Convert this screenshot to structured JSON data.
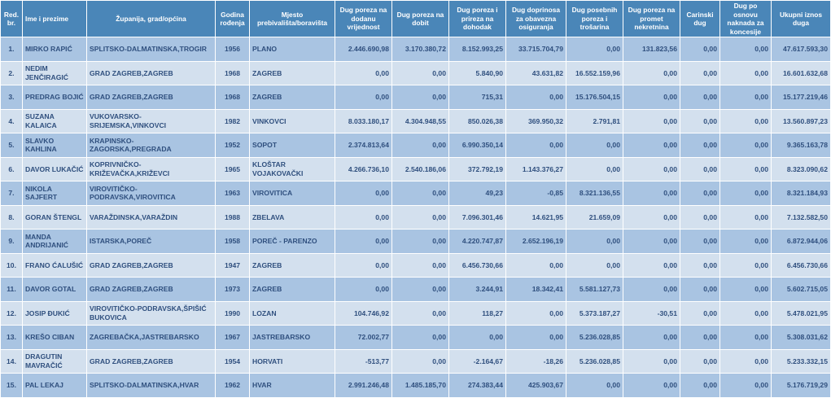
{
  "headers": {
    "rbr": "Red. br.",
    "name": "Ime i prezime",
    "zupanija": "Županija, grad/općina",
    "godina": "Godina rođenja",
    "mjesto": "Mjesto prebivališta/boravišta",
    "pdv": "Dug poreza na dodanu vrijednost",
    "dobit": "Dug poreza na dobit",
    "dohodak": "Dug poreza i prireza na dohodak",
    "doprinosi": "Dug doprinosa za obavezna osiguranja",
    "posebni": "Dug posebnih poreza i trošarina",
    "nekretnine": "Dug poreza na promet nekretnina",
    "carinski": "Carinski dug",
    "koncesije": "Dug po osnovu naknada za koncesije",
    "ukupno": "Ukupni iznos duga"
  },
  "rows": [
    {
      "rbr": "1.",
      "name": "MIRKO RAPIĆ",
      "zupanija": "SPLITSKO-DALMATINSKA,TROGIR",
      "godina": "1956",
      "mjesto": "PLANO",
      "pdv": "2.446.690,98",
      "dobit": "3.170.380,72",
      "dohodak": "8.152.993,25",
      "doprinosi": "33.715.704,79",
      "posebni": "0,00",
      "nekretnine": "131.823,56",
      "carinski": "0,00",
      "koncesije": "0,00",
      "ukupno": "47.617.593,30"
    },
    {
      "rbr": "2.",
      "name": "NEDIM JENČIRAGIĆ",
      "zupanija": "GRAD ZAGREB,ZAGREB",
      "godina": "1968",
      "mjesto": "ZAGREB",
      "pdv": "0,00",
      "dobit": "0,00",
      "dohodak": "5.840,90",
      "doprinosi": "43.631,82",
      "posebni": "16.552.159,96",
      "nekretnine": "0,00",
      "carinski": "0,00",
      "koncesije": "0,00",
      "ukupno": "16.601.632,68"
    },
    {
      "rbr": "3.",
      "name": "PREDRAG BOJIĆ",
      "zupanija": "GRAD ZAGREB,ZAGREB",
      "godina": "1968",
      "mjesto": "ZAGREB",
      "pdv": "0,00",
      "dobit": "0,00",
      "dohodak": "715,31",
      "doprinosi": "0,00",
      "posebni": "15.176.504,15",
      "nekretnine": "0,00",
      "carinski": "0,00",
      "koncesije": "0,00",
      "ukupno": "15.177.219,46"
    },
    {
      "rbr": "4.",
      "name": "SUZANA KALAICA",
      "zupanija": "VUKOVARSKO-SRIJEMSKA,VINKOVCI",
      "godina": "1982",
      "mjesto": "VINKOVCI",
      "pdv": "8.033.180,17",
      "dobit": "4.304.948,55",
      "dohodak": "850.026,38",
      "doprinosi": "369.950,32",
      "posebni": "2.791,81",
      "nekretnine": "0,00",
      "carinski": "0,00",
      "koncesije": "0,00",
      "ukupno": "13.560.897,23"
    },
    {
      "rbr": "5.",
      "name": "SLAVKO KAHLINA",
      "zupanija": "KRAPINSKO-ZAGORSKA,PREGRADA",
      "godina": "1952",
      "mjesto": "SOPOT",
      "pdv": "2.374.813,64",
      "dobit": "0,00",
      "dohodak": "6.990.350,14",
      "doprinosi": "0,00",
      "posebni": "0,00",
      "nekretnine": "0,00",
      "carinski": "0,00",
      "koncesije": "0,00",
      "ukupno": "9.365.163,78"
    },
    {
      "rbr": "6.",
      "name": "DAVOR LUKAČIĆ",
      "zupanija": "KOPRIVNIČKO-KRIŽEVAČKA,KRIŽEVCI",
      "godina": "1965",
      "mjesto": "KLOŠTAR VOJAKOVAČKI",
      "pdv": "4.266.736,10",
      "dobit": "2.540.186,06",
      "dohodak": "372.792,19",
      "doprinosi": "1.143.376,27",
      "posebni": "0,00",
      "nekretnine": "0,00",
      "carinski": "0,00",
      "koncesije": "0,00",
      "ukupno": "8.323.090,62"
    },
    {
      "rbr": "7.",
      "name": "NIKOLA SAJFERT",
      "zupanija": "VIROVITIČKO-PODRAVSKA,VIROVITICA",
      "godina": "1963",
      "mjesto": "VIROVITICA",
      "pdv": "0,00",
      "dobit": "0,00",
      "dohodak": "49,23",
      "doprinosi": "-0,85",
      "posebni": "8.321.136,55",
      "nekretnine": "0,00",
      "carinski": "0,00",
      "koncesije": "0,00",
      "ukupno": "8.321.184,93"
    },
    {
      "rbr": "8.",
      "name": "GORAN ŠTENGL",
      "zupanija": "VARAŽDINSKA,VARAŽDIN",
      "godina": "1988",
      "mjesto": "ZBELAVA",
      "pdv": "0,00",
      "dobit": "0,00",
      "dohodak": "7.096.301,46",
      "doprinosi": "14.621,95",
      "posebni": "21.659,09",
      "nekretnine": "0,00",
      "carinski": "0,00",
      "koncesije": "0,00",
      "ukupno": "7.132.582,50"
    },
    {
      "rbr": "9.",
      "name": "MANDA ANDRIJANIĆ",
      "zupanija": "ISTARSKA,POREČ",
      "godina": "1958",
      "mjesto": "POREČ - PARENZO",
      "pdv": "0,00",
      "dobit": "0,00",
      "dohodak": "4.220.747,87",
      "doprinosi": "2.652.196,19",
      "posebni": "0,00",
      "nekretnine": "0,00",
      "carinski": "0,00",
      "koncesije": "0,00",
      "ukupno": "6.872.944,06"
    },
    {
      "rbr": "10.",
      "name": "FRANO ĆALUŠIĆ",
      "zupanija": "GRAD ZAGREB,ZAGREB",
      "godina": "1947",
      "mjesto": "ZAGREB",
      "pdv": "0,00",
      "dobit": "0,00",
      "dohodak": "6.456.730,66",
      "doprinosi": "0,00",
      "posebni": "0,00",
      "nekretnine": "0,00",
      "carinski": "0,00",
      "koncesije": "0,00",
      "ukupno": "6.456.730,66"
    },
    {
      "rbr": "11.",
      "name": "DAVOR GOTAL",
      "zupanija": "GRAD ZAGREB,ZAGREB",
      "godina": "1973",
      "mjesto": "ZAGREB",
      "pdv": "0,00",
      "dobit": "0,00",
      "dohodak": "3.244,91",
      "doprinosi": "18.342,41",
      "posebni": "5.581.127,73",
      "nekretnine": "0,00",
      "carinski": "0,00",
      "koncesije": "0,00",
      "ukupno": "5.602.715,05"
    },
    {
      "rbr": "12.",
      "name": "JOSIP ĐUKIĆ",
      "zupanija": "VIROVITIČKO-PODRAVSKA,ŠPIŠIĆ BUKOVICA",
      "godina": "1990",
      "mjesto": "LOZAN",
      "pdv": "104.746,92",
      "dobit": "0,00",
      "dohodak": "118,27",
      "doprinosi": "0,00",
      "posebni": "5.373.187,27",
      "nekretnine": "-30,51",
      "carinski": "0,00",
      "koncesije": "0,00",
      "ukupno": "5.478.021,95"
    },
    {
      "rbr": "13.",
      "name": "KREŠO CIBAN",
      "zupanija": "ZAGREBAČKA,JASTREBARSKO",
      "godina": "1967",
      "mjesto": "JASTREBARSKO",
      "pdv": "72.002,77",
      "dobit": "0,00",
      "dohodak": "0,00",
      "doprinosi": "0,00",
      "posebni": "5.236.028,85",
      "nekretnine": "0,00",
      "carinski": "0,00",
      "koncesije": "0,00",
      "ukupno": "5.308.031,62"
    },
    {
      "rbr": "14.",
      "name": "DRAGUTIN MAVRAČIĆ",
      "zupanija": "GRAD ZAGREB,ZAGREB",
      "godina": "1954",
      "mjesto": "HORVATI",
      "pdv": "-513,77",
      "dobit": "0,00",
      "dohodak": "-2.164,67",
      "doprinosi": "-18,26",
      "posebni": "5.236.028,85",
      "nekretnine": "0,00",
      "carinski": "0,00",
      "koncesije": "0,00",
      "ukupno": "5.233.332,15"
    },
    {
      "rbr": "15.",
      "name": "PAL LEKAJ",
      "zupanija": "SPLITSKO-DALMATINSKA,HVAR",
      "godina": "1962",
      "mjesto": "HVAR",
      "pdv": "2.991.246,48",
      "dobit": "1.485.185,70",
      "dohodak": "274.383,44",
      "doprinosi": "425.903,67",
      "posebni": "0,00",
      "nekretnine": "0,00",
      "carinski": "0,00",
      "koncesije": "0,00",
      "ukupno": "5.176.719,29"
    }
  ]
}
